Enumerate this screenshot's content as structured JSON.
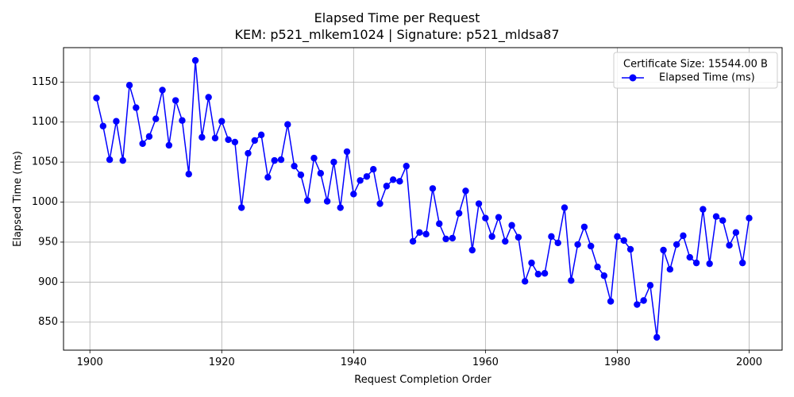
{
  "chart_data": {
    "type": "line",
    "title": "Elapsed Time per Request",
    "subtitle": "KEM: p521_mlkem1024 | Signature: p521_mldsa87",
    "xlabel": "Request Completion Order",
    "ylabel": "Elapsed Time (ms)",
    "xlim": [
      1896,
      2005
    ],
    "ylim": [
      815,
      1193
    ],
    "xticks": [
      1900,
      1920,
      1940,
      1960,
      1980,
      2000
    ],
    "yticks": [
      850,
      900,
      950,
      1000,
      1050,
      1100,
      1150
    ],
    "grid": true,
    "legend": {
      "title": "Certificate Size: 15544.00 B",
      "placement": "top-right",
      "entries": [
        "Elapsed Time (ms)"
      ]
    },
    "colors": {
      "line": "#0000ff",
      "marker": "#0000ff",
      "grid": "#b0b0b0"
    },
    "series": [
      {
        "name": "Elapsed Time (ms)",
        "x": [
          1901,
          1902,
          1903,
          1904,
          1905,
          1906,
          1907,
          1908,
          1909,
          1910,
          1911,
          1912,
          1913,
          1914,
          1915,
          1916,
          1917,
          1918,
          1919,
          1920,
          1921,
          1922,
          1923,
          1924,
          1925,
          1926,
          1927,
          1928,
          1929,
          1930,
          1931,
          1932,
          1933,
          1934,
          1935,
          1936,
          1937,
          1938,
          1939,
          1940,
          1941,
          1942,
          1943,
          1944,
          1945,
          1946,
          1947,
          1948,
          1949,
          1950,
          1951,
          1952,
          1953,
          1954,
          1955,
          1956,
          1957,
          1958,
          1959,
          1960,
          1961,
          1962,
          1963,
          1964,
          1965,
          1966,
          1967,
          1968,
          1969,
          1970,
          1971,
          1972,
          1973,
          1974,
          1975,
          1976,
          1977,
          1978,
          1979,
          1980,
          1981,
          1982,
          1983,
          1984,
          1985,
          1986,
          1987,
          1988,
          1989,
          1990,
          1991,
          1992,
          1993,
          1994,
          1995,
          1996,
          1997,
          1998,
          1999,
          2000
        ],
        "y": [
          1130,
          1095,
          1053,
          1101,
          1052,
          1146,
          1118,
          1073,
          1082,
          1104,
          1140,
          1071,
          1127,
          1102,
          1035,
          1177,
          1081,
          1131,
          1080,
          1101,
          1078,
          1075,
          993,
          1061,
          1077,
          1084,
          1031,
          1052,
          1053,
          1097,
          1045,
          1034,
          1002,
          1055,
          1036,
          1001,
          1050,
          993,
          1063,
          1010,
          1027,
          1032,
          1041,
          998,
          1020,
          1028,
          1026,
          1045,
          951,
          962,
          960,
          1017,
          973,
          954,
          955,
          986,
          1014,
          940,
          998,
          980,
          957,
          981,
          951,
          971,
          956,
          901,
          924,
          910,
          911,
          957,
          949,
          993,
          902,
          947,
          969,
          945,
          919,
          908,
          876,
          957,
          952,
          941,
          872,
          877,
          896,
          831,
          940,
          916,
          947,
          958,
          931,
          924,
          991,
          923,
          982,
          977,
          946,
          962,
          924,
          980
        ]
      }
    ]
  }
}
